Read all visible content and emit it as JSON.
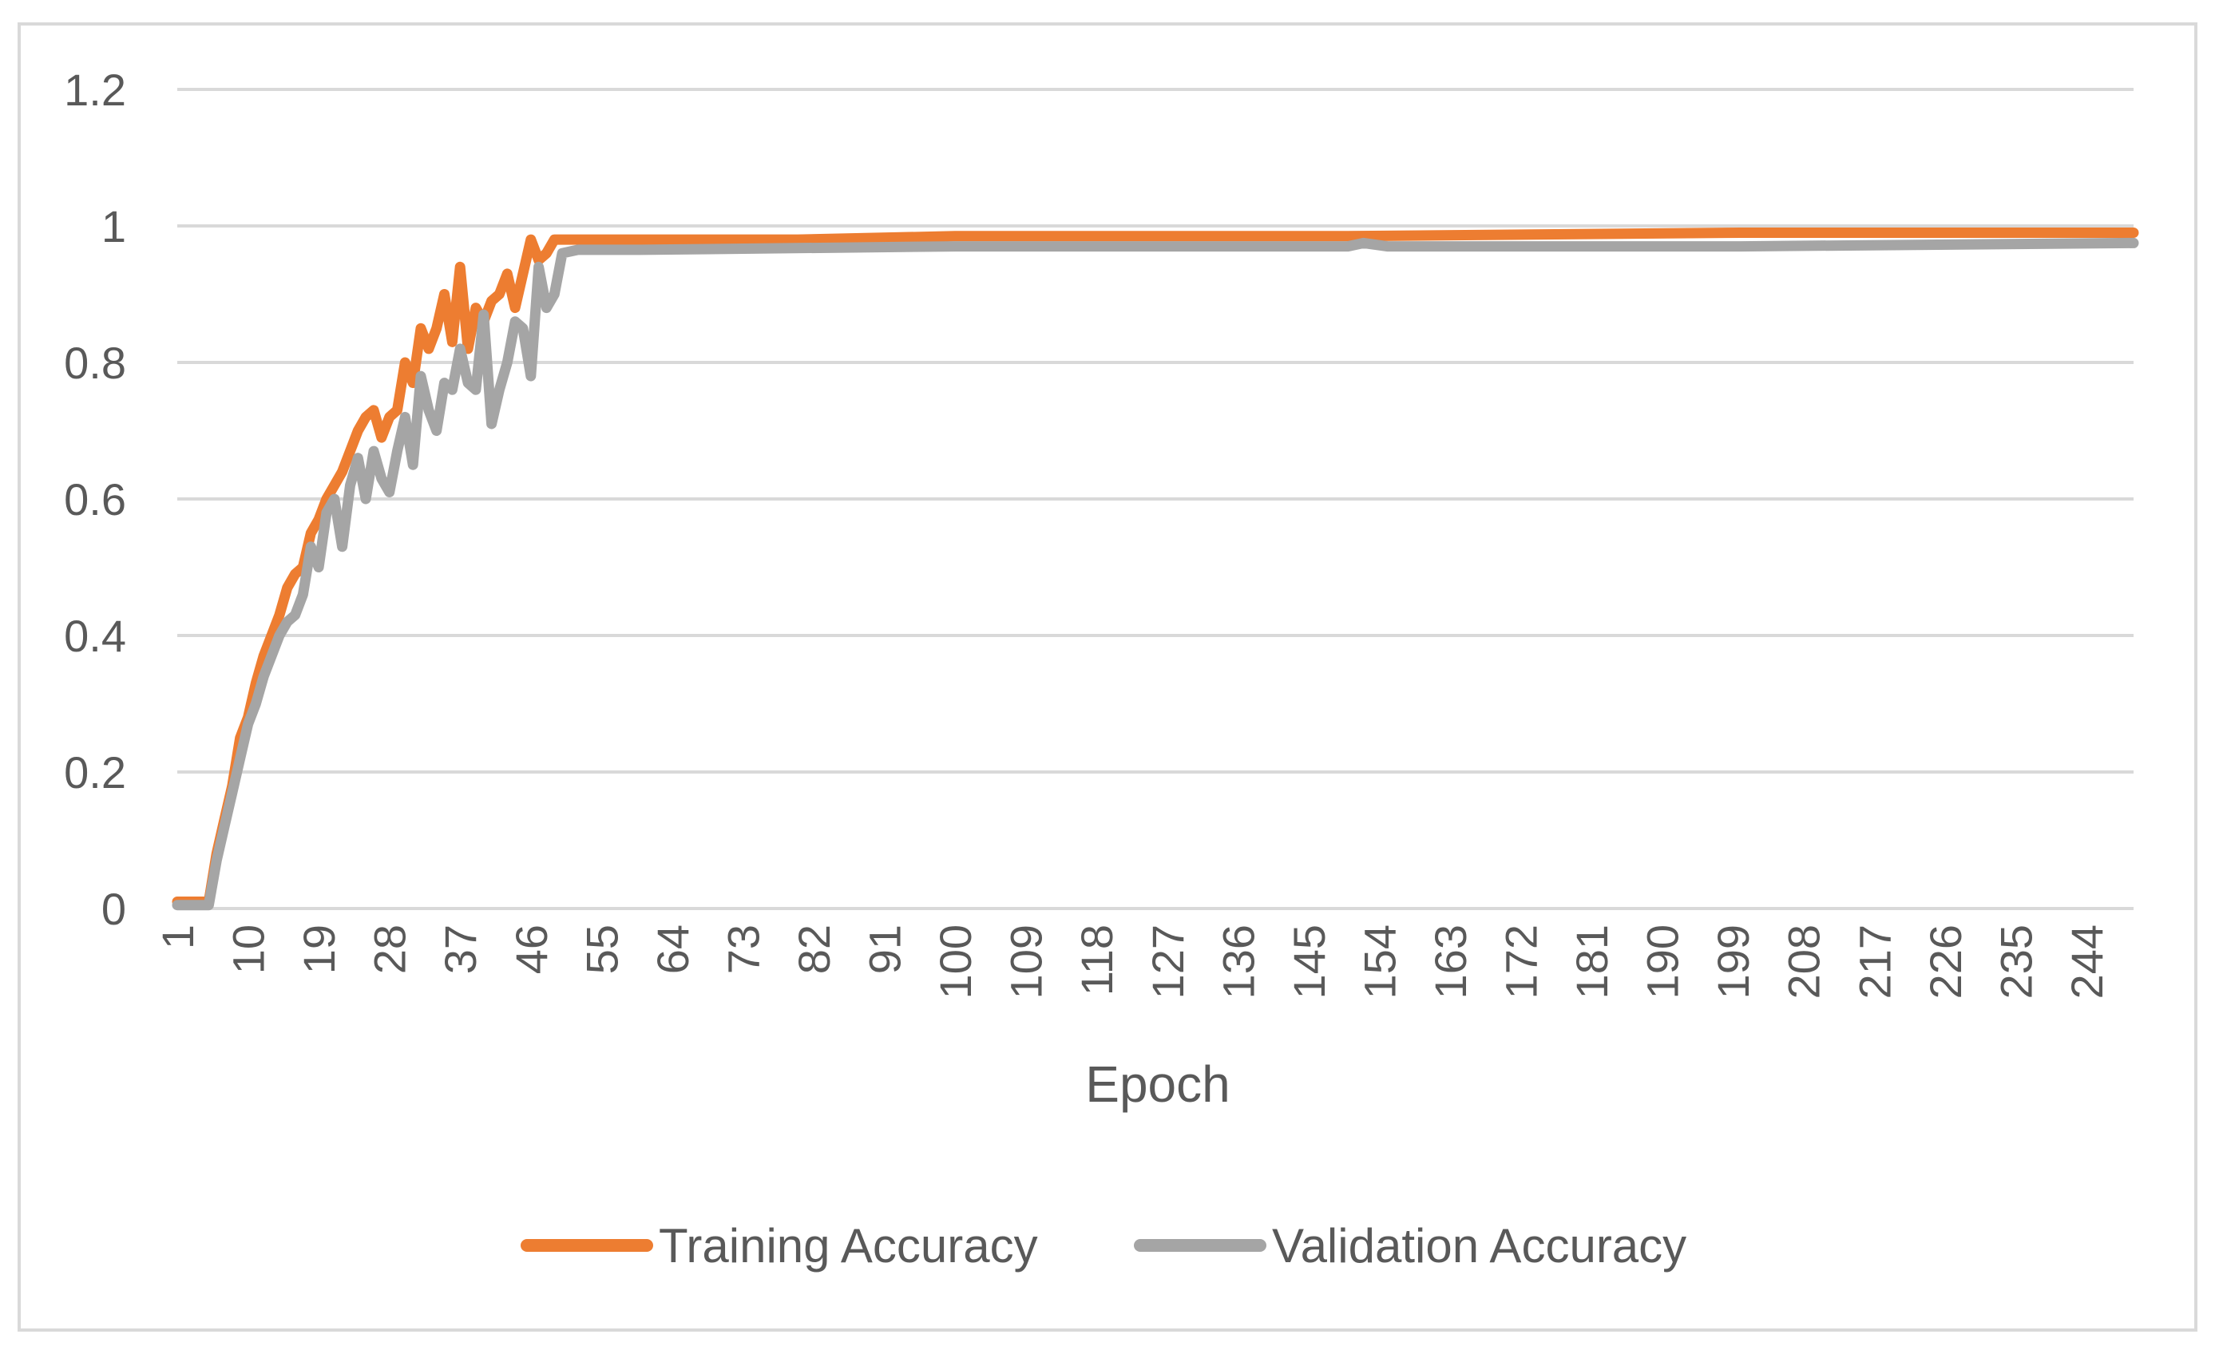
{
  "chart_data": {
    "type": "line",
    "title": "",
    "xlabel": "Epoch",
    "ylabel": "",
    "ylim": [
      0,
      1.2
    ],
    "y_ticks": [
      "0",
      "0.2",
      "0.4",
      "0.6",
      "0.8",
      "1",
      "1.2"
    ],
    "x_ticks": [
      "1",
      "10",
      "19",
      "28",
      "37",
      "46",
      "55",
      "64",
      "73",
      "82",
      "91",
      "100",
      "109",
      "118",
      "127",
      "136",
      "145",
      "154",
      "163",
      "172",
      "181",
      "190",
      "199",
      "208",
      "217",
      "226",
      "235",
      "244"
    ],
    "x_range": [
      1,
      250
    ],
    "grid": "horizontal",
    "legend_position": "bottom",
    "series": [
      {
        "name": "Training Accuracy",
        "color": "#ed7d31",
        "points": [
          [
            1,
            0.01
          ],
          [
            3,
            0.01
          ],
          [
            5,
            0.01
          ],
          [
            6,
            0.08
          ],
          [
            7,
            0.13
          ],
          [
            8,
            0.18
          ],
          [
            9,
            0.25
          ],
          [
            10,
            0.28
          ],
          [
            11,
            0.33
          ],
          [
            12,
            0.37
          ],
          [
            13,
            0.4
          ],
          [
            14,
            0.43
          ],
          [
            15,
            0.47
          ],
          [
            16,
            0.49
          ],
          [
            17,
            0.5
          ],
          [
            18,
            0.55
          ],
          [
            19,
            0.57
          ],
          [
            20,
            0.6
          ],
          [
            21,
            0.62
          ],
          [
            22,
            0.64
          ],
          [
            23,
            0.67
          ],
          [
            24,
            0.7
          ],
          [
            25,
            0.72
          ],
          [
            26,
            0.73
          ],
          [
            27,
            0.69
          ],
          [
            28,
            0.72
          ],
          [
            29,
            0.73
          ],
          [
            30,
            0.8
          ],
          [
            31,
            0.77
          ],
          [
            32,
            0.85
          ],
          [
            33,
            0.82
          ],
          [
            34,
            0.85
          ],
          [
            35,
            0.9
          ],
          [
            36,
            0.83
          ],
          [
            37,
            0.94
          ],
          [
            38,
            0.82
          ],
          [
            39,
            0.88
          ],
          [
            40,
            0.86
          ],
          [
            41,
            0.89
          ],
          [
            42,
            0.9
          ],
          [
            43,
            0.93
          ],
          [
            44,
            0.88
          ],
          [
            45,
            0.93
          ],
          [
            46,
            0.98
          ],
          [
            47,
            0.95
          ],
          [
            48,
            0.96
          ],
          [
            49,
            0.98
          ],
          [
            52,
            0.98
          ],
          [
            60,
            0.98
          ],
          [
            80,
            0.98
          ],
          [
            100,
            0.985
          ],
          [
            150,
            0.985
          ],
          [
            200,
            0.99
          ],
          [
            250,
            0.99
          ]
        ]
      },
      {
        "name": "Validation Accuracy",
        "color": "#a5a5a5",
        "points": [
          [
            1,
            0.005
          ],
          [
            5,
            0.005
          ],
          [
            6,
            0.07
          ],
          [
            7,
            0.12
          ],
          [
            8,
            0.17
          ],
          [
            9,
            0.22
          ],
          [
            10,
            0.27
          ],
          [
            11,
            0.3
          ],
          [
            12,
            0.34
          ],
          [
            13,
            0.37
          ],
          [
            14,
            0.4
          ],
          [
            15,
            0.42
          ],
          [
            16,
            0.43
          ],
          [
            17,
            0.46
          ],
          [
            18,
            0.53
          ],
          [
            19,
            0.5
          ],
          [
            20,
            0.58
          ],
          [
            21,
            0.6
          ],
          [
            22,
            0.53
          ],
          [
            23,
            0.62
          ],
          [
            24,
            0.66
          ],
          [
            25,
            0.6
          ],
          [
            26,
            0.67
          ],
          [
            27,
            0.63
          ],
          [
            28,
            0.61
          ],
          [
            29,
            0.67
          ],
          [
            30,
            0.72
          ],
          [
            31,
            0.65
          ],
          [
            32,
            0.78
          ],
          [
            33,
            0.73
          ],
          [
            34,
            0.7
          ],
          [
            35,
            0.77
          ],
          [
            36,
            0.76
          ],
          [
            37,
            0.82
          ],
          [
            38,
            0.77
          ],
          [
            39,
            0.76
          ],
          [
            40,
            0.87
          ],
          [
            41,
            0.71
          ],
          [
            42,
            0.76
          ],
          [
            43,
            0.8
          ],
          [
            44,
            0.86
          ],
          [
            45,
            0.85
          ],
          [
            46,
            0.78
          ],
          [
            47,
            0.94
          ],
          [
            48,
            0.88
          ],
          [
            49,
            0.9
          ],
          [
            50,
            0.96
          ],
          [
            52,
            0.965
          ],
          [
            60,
            0.965
          ],
          [
            100,
            0.97
          ],
          [
            150,
            0.97
          ],
          [
            152,
            0.975
          ],
          [
            155,
            0.97
          ],
          [
            200,
            0.97
          ],
          [
            250,
            0.975
          ]
        ]
      }
    ]
  }
}
